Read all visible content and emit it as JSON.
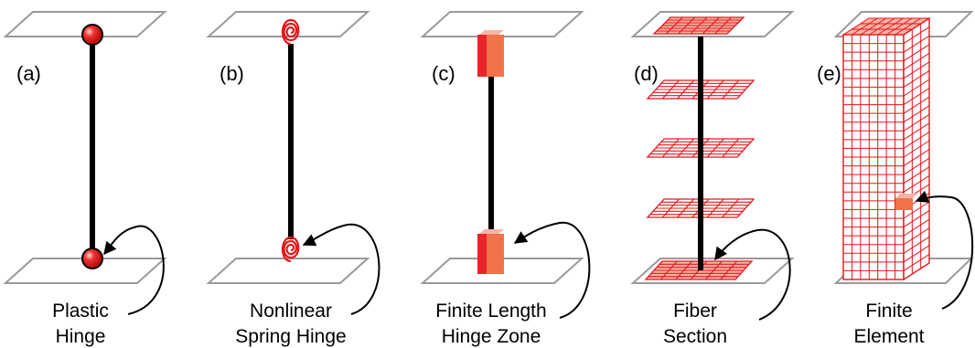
{
  "colors": {
    "accent_red": "#e8141a",
    "hinge_face": "#f0734a",
    "hinge_side": "#e8252a",
    "fiber_light": "#f7b4a4",
    "plate_gray": "#9a9a9a",
    "column_black": "#000000"
  },
  "panels": [
    {
      "label": "(a)",
      "caption_line1": "Plastic",
      "caption_line2": "Hinge",
      "hinge_type": "sphere"
    },
    {
      "label": "(b)",
      "caption_line1": "Nonlinear",
      "caption_line2": "Spring Hinge",
      "hinge_type": "spiral-spring"
    },
    {
      "label": "(c)",
      "caption_line1": "Finite Length",
      "caption_line2": "Hinge Zone",
      "hinge_type": "block-zone"
    },
    {
      "label": "(d)",
      "caption_line1": "Fiber",
      "caption_line2": "Section",
      "hinge_type": "fiber-grid"
    },
    {
      "label": "(e)",
      "caption_line1": "Finite",
      "caption_line2": "Element",
      "hinge_type": "solid-mesh"
    }
  ]
}
